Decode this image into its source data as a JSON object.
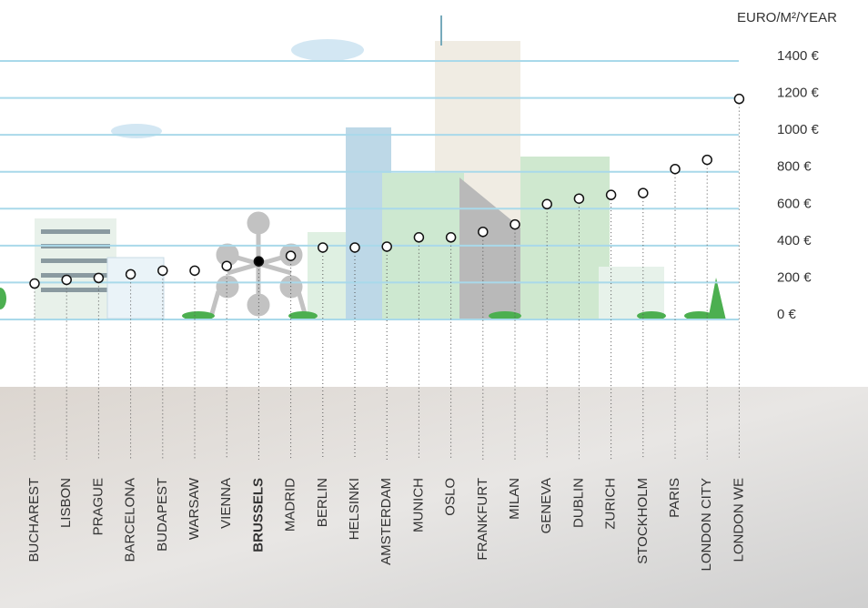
{
  "chart_data": {
    "type": "dot",
    "y_axis_label": "EURO/M²/YEAR",
    "categories": [
      "BUCHAREST",
      "LISBON",
      "PRAGUE",
      "BARCELONA",
      "BUDAPEST",
      "WARSAW",
      "VIENNA",
      "BRUSSELS",
      "MADRID",
      "BERLIN",
      "HELSINKI",
      "AMSTERDAM",
      "MUNICH",
      "OSLO",
      "FRANKFURT",
      "MILAN",
      "GENEVA",
      "DUBLIN",
      "ZURICH",
      "STOCKHOLM",
      "PARIS",
      "LONDON CITY",
      "LONDON WE"
    ],
    "values": [
      170,
      190,
      200,
      220,
      240,
      240,
      265,
      290,
      320,
      365,
      365,
      370,
      420,
      420,
      450,
      490,
      600,
      630,
      650,
      660,
      790,
      840,
      1170
    ],
    "highlight": "BRUSSELS",
    "ylim": [
      0,
      1400
    ],
    "yticks": [
      {
        "value": 0,
        "label": "0 €"
      },
      {
        "value": 200,
        "label": "200 €"
      },
      {
        "value": 400,
        "label": "400 €"
      },
      {
        "value": 600,
        "label": "600 €"
      },
      {
        "value": 800,
        "label": "800 €"
      },
      {
        "value": 1000,
        "label": "1000 €"
      },
      {
        "value": 1200,
        "label": "1200 €"
      },
      {
        "value": 1400,
        "label": "1400 €"
      }
    ],
    "grid": true,
    "grid_color": "#a9d9ea",
    "color": "#ffffff"
  }
}
